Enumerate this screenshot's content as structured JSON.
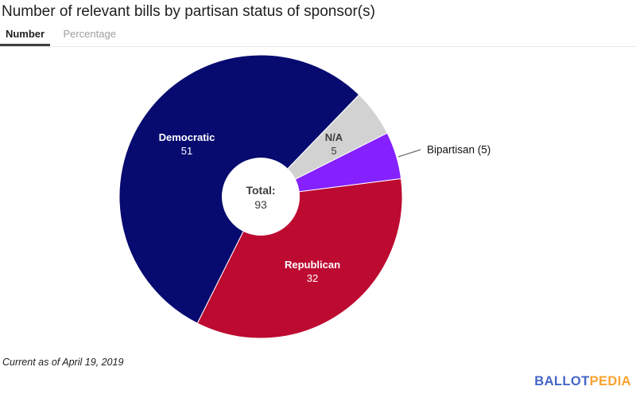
{
  "header": {
    "title": "Number of relevant bills by partisan status of sponsor(s)",
    "tabs": [
      {
        "label": "Number",
        "active": true
      },
      {
        "label": "Percentage",
        "active": false
      }
    ]
  },
  "chart_data": {
    "type": "pie",
    "title": "Number of relevant bills by partisan status of sponsor(s)",
    "donut": true,
    "total": 93,
    "center_label": {
      "label": "Total:",
      "value": 93
    },
    "start_angle_deg": 206.6,
    "legend_position": "none",
    "slices": [
      {
        "label": "Democratic",
        "value": 51,
        "color": "#070b70",
        "label_style": "inside-white"
      },
      {
        "label": "N/A",
        "value": 5,
        "color": "#d2d2d2",
        "label_style": "inside-dark"
      },
      {
        "label": "Bipartisan",
        "value": 5,
        "color": "#8520ff",
        "label_style": "callout",
        "callout_text": "Bipartisan (5)"
      },
      {
        "label": "Republican",
        "value": 32,
        "color": "#bd0a31",
        "label_style": "inside-white"
      }
    ]
  },
  "footer": {
    "note": "Current as of April 19, 2019",
    "logo": {
      "text_blue": "BALLOT",
      "text_orange": "PEDIA",
      "blue": "#4565c9",
      "orange": "#f9a331"
    }
  }
}
